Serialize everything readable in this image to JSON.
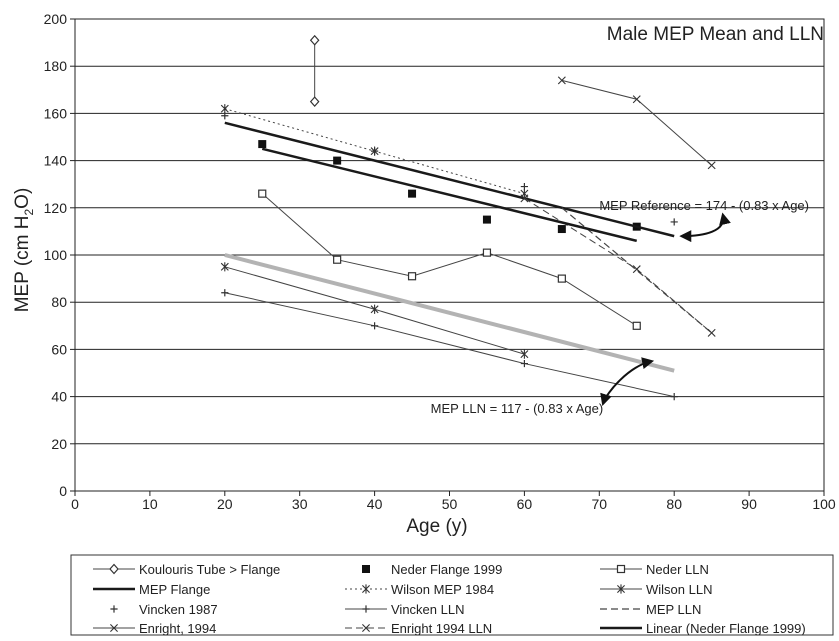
{
  "chart_data": {
    "type": "line",
    "title": "Male MEP Mean and LLN",
    "xlabel": "Age (y)",
    "ylabel": "MEP (cm H2O)",
    "xlim": [
      0,
      100
    ],
    "ylim": [
      0,
      200
    ],
    "x_ticks": [
      0,
      10,
      20,
      30,
      40,
      50,
      60,
      70,
      80,
      90,
      100
    ],
    "y_ticks": [
      0,
      20,
      40,
      60,
      80,
      100,
      120,
      140,
      160,
      180,
      200
    ],
    "grid": "horizontal",
    "legend_position": "bottom",
    "series": [
      {
        "name": "Koulouris Tube > Flange",
        "marker": "diamond",
        "dash": "solid",
        "width": 1,
        "x": [
          32,
          32
        ],
        "y": [
          191,
          165
        ]
      },
      {
        "name": "Neder Flange 1999",
        "marker": "square-filled",
        "dash": "none",
        "width": 0,
        "x": [
          25,
          35,
          45,
          55,
          65,
          75
        ],
        "y": [
          147,
          140,
          126,
          115,
          111,
          112
        ]
      },
      {
        "name": "Neder LLN",
        "marker": "square",
        "dash": "solid",
        "width": 1,
        "x": [
          25,
          35,
          45,
          55,
          65,
          75
        ],
        "y": [
          126,
          98,
          91,
          101,
          90,
          70
        ]
      },
      {
        "name": "MEP Flange",
        "marker": "none",
        "dash": "solid",
        "width": 2.5,
        "x": [
          20,
          80
        ],
        "y": [
          156,
          108
        ]
      },
      {
        "name": "Wilson MEP 1984",
        "marker": "star",
        "dash": "dotted",
        "width": 1,
        "x": [
          20,
          40,
          60
        ],
        "y": [
          162,
          144,
          126
        ]
      },
      {
        "name": "Wilson LLN",
        "marker": "star",
        "dash": "solid",
        "width": 1,
        "x": [
          20,
          40,
          60
        ],
        "y": [
          95,
          77,
          58
        ]
      },
      {
        "name": "Vincken 1987",
        "marker": "plus",
        "dash": "none",
        "width": 0,
        "x": [
          20,
          40,
          60,
          80
        ],
        "y": [
          159,
          144,
          129,
          114
        ]
      },
      {
        "name": "Vincken LLN",
        "marker": "plus",
        "dash": "solid",
        "width": 1,
        "x": [
          20,
          40,
          60,
          80
        ],
        "y": [
          84,
          70,
          54,
          40
        ]
      },
      {
        "name": "MEP LLN",
        "marker": "none",
        "dash": "dashed",
        "width": 1.2,
        "x": [
          65,
          85
        ],
        "y": [
          120,
          67
        ]
      },
      {
        "name": "Enright, 1994",
        "marker": "x",
        "dash": "solid",
        "width": 1,
        "x": [
          65,
          75,
          85
        ],
        "y": [
          174,
          166,
          138
        ]
      },
      {
        "name": "Enright 1994 LLN",
        "marker": "x",
        "dash": "dashed",
        "width": 1,
        "x": [
          60,
          75,
          85
        ],
        "y": [
          124,
          94,
          67
        ]
      },
      {
        "name": "Linear (Neder Flange 1999)",
        "marker": "none",
        "dash": "solid",
        "width": 2.5,
        "x": [
          25,
          75
        ],
        "y": [
          145,
          106
        ]
      },
      {
        "name": "",
        "marker": "none",
        "dash": "solid",
        "width": 4,
        "color": "#b3b3b3",
        "x": [
          20,
          80
        ],
        "y": [
          100,
          51
        ]
      }
    ],
    "annotations": [
      {
        "text": "MEP Reference = 174 - (0.83 x Age)",
        "at": [
          84,
          119
        ]
      },
      {
        "text": "MEP LLN = 117 - (0.83 x Age)",
        "at": [
          59,
          33
        ]
      }
    ],
    "legend": [
      [
        "Koulouris Tube > Flange",
        "Neder Flange 1999",
        "Neder LLN"
      ],
      [
        "MEP Flange",
        "Wilson MEP 1984",
        "Wilson LLN"
      ],
      [
        "Vincken 1987",
        "Vincken LLN",
        "MEP LLN"
      ],
      [
        "Enright, 1994",
        "Enright 1994 LLN",
        "Linear (Neder Flange 1999)"
      ]
    ]
  }
}
